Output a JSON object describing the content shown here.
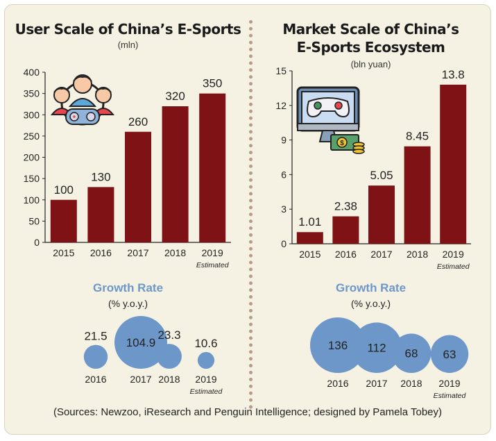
{
  "colors": {
    "bar": "#7e1214",
    "bubble": "#6d97c9",
    "growth_title": "#6d97c9",
    "background": "#f5f2e3"
  },
  "icons": {
    "left": "gamers-with-controller-icon",
    "right": "monitor-controller-money-icon"
  },
  "left": {
    "title": "User Scale of China’s E-Sports",
    "subtitle": "(mln)",
    "growth_title": "Growth Rate",
    "growth_subtitle": "(% y.o.y.)"
  },
  "right": {
    "title_line1": "Market Scale of China’s",
    "title_line2": "E-Sports Ecosystem",
    "subtitle": "(bln yuan)",
    "growth_title": "Growth Rate",
    "growth_subtitle": "(% y.o.y.)"
  },
  "sources": "(Sources: Newzoo, iResearch and Penguin Intelligence; designed by Pamela Tobey)",
  "chart_data": [
    {
      "type": "bar",
      "title": "User Scale of China’s E-Sports",
      "subtitle": "(mln)",
      "categories": [
        "2015",
        "2016",
        "2017",
        "2018",
        "2019"
      ],
      "category_notes": [
        "",
        "",
        "",
        "",
        "Estimated"
      ],
      "values": [
        100,
        130,
        260,
        320,
        350
      ],
      "value_labels": [
        "100",
        "130",
        "260",
        "320",
        "350"
      ],
      "ylim": [
        0,
        400
      ],
      "yticks": [
        "0",
        "50",
        "100",
        "150",
        "200",
        "250",
        "300",
        "350",
        "400"
      ]
    },
    {
      "type": "bar",
      "title": "Market Scale of China’s E-Sports Ecosystem",
      "subtitle": "(bln yuan)",
      "categories": [
        "2015",
        "2016",
        "2017",
        "2018",
        "2019"
      ],
      "category_notes": [
        "",
        "",
        "",
        "",
        "Estimated"
      ],
      "values": [
        1.01,
        2.38,
        5.05,
        8.45,
        13.8
      ],
      "value_labels": [
        "1.01",
        "2.38",
        "5.05",
        "8.45",
        "13.8"
      ],
      "ylim": [
        0,
        15
      ],
      "yticks": [
        "0",
        "3",
        "6",
        "9",
        "12",
        "15"
      ]
    },
    {
      "type": "scatter",
      "title": "Growth Rate",
      "subtitle": "(% y.o.y.)",
      "categories": [
        "2016",
        "2017",
        "2018",
        "2019"
      ],
      "category_notes": [
        "",
        "",
        "",
        "Estimated"
      ],
      "values": [
        21.5,
        104.9,
        23.3,
        10.6
      ],
      "value_labels": [
        "21.5",
        "104.9",
        "23.3",
        "10.6"
      ]
    },
    {
      "type": "scatter",
      "title": "Growth Rate",
      "subtitle": "(% y.o.y.)",
      "categories": [
        "2016",
        "2017",
        "2018",
        "2019"
      ],
      "category_notes": [
        "",
        "",
        "",
        "Estimated"
      ],
      "values": [
        136,
        112,
        68,
        63
      ],
      "value_labels": [
        "136",
        "112",
        "68",
        "63"
      ]
    }
  ]
}
